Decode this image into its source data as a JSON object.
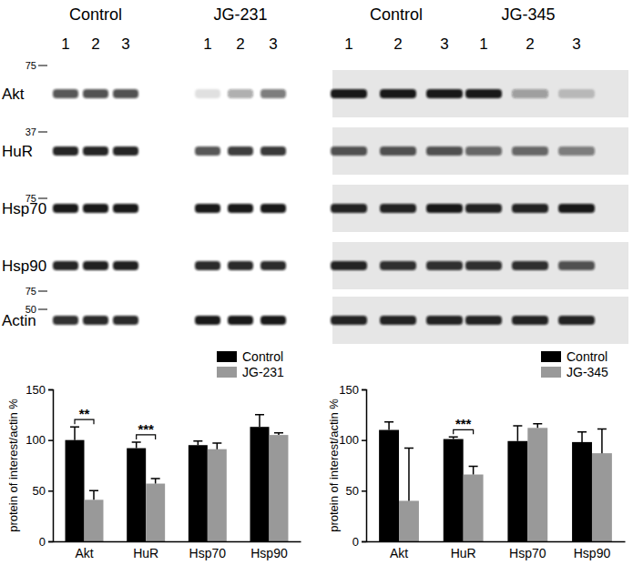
{
  "blots": {
    "panels": [
      {
        "groups": [
          "Control",
          "JG-231"
        ],
        "lanes": [
          1,
          2,
          3,
          1,
          2,
          3
        ],
        "rows": [
          {
            "label": "Akt",
            "marker": 75,
            "band_intensity": [
              0.7,
              0.72,
              0.72,
              0.12,
              0.35,
              0.55
            ]
          },
          {
            "label": "HuR",
            "marker": 37,
            "band_intensity": [
              0.9,
              0.9,
              0.9,
              0.7,
              0.8,
              0.82
            ]
          },
          {
            "label": "Hsp70",
            "marker": 75,
            "band_intensity": [
              0.95,
              0.95,
              0.95,
              0.95,
              0.95,
              0.95
            ]
          },
          {
            "label": "Hsp90",
            "marker": 75,
            "band_intensity": [
              0.9,
              0.92,
              0.92,
              0.88,
              0.88,
              0.88
            ]
          },
          {
            "label": "Actin",
            "marker": 50,
            "band_intensity": [
              0.85,
              0.88,
              0.88,
              0.95,
              0.95,
              0.95
            ]
          }
        ]
      },
      {
        "groups": [
          "Control",
          "JG-345"
        ],
        "lanes": [
          1,
          2,
          3,
          1,
          2,
          3
        ],
        "rows": [
          {
            "band_intensity": [
              0.95,
              0.95,
              0.95,
              0.95,
              0.35,
              0.2
            ]
          },
          {
            "band_intensity": [
              0.7,
              0.7,
              0.7,
              0.6,
              0.6,
              0.5
            ]
          },
          {
            "band_intensity": [
              0.9,
              0.9,
              0.95,
              0.9,
              0.9,
              0.95
            ]
          },
          {
            "band_intensity": [
              0.9,
              0.85,
              0.85,
              0.85,
              0.85,
              0.7
            ]
          },
          {
            "band_intensity": [
              0.9,
              0.9,
              0.9,
              0.9,
              0.9,
              0.9
            ]
          }
        ]
      }
    ]
  },
  "chart_data": [
    {
      "type": "bar",
      "ylabel": "protein of interest/actin %",
      "categories": [
        "Akt",
        "HuR",
        "Hsp70",
        "Hsp90"
      ],
      "series": [
        {
          "name": "Control",
          "color": "#000000",
          "values": [
            100,
            92,
            95,
            113
          ],
          "errors": [
            13,
            6,
            4,
            12
          ]
        },
        {
          "name": "JG-231",
          "color": "#999999",
          "values": [
            41,
            57,
            91,
            105
          ],
          "errors": [
            9,
            5,
            6,
            2
          ]
        }
      ],
      "ylim": [
        0,
        150
      ],
      "yticks": [
        0,
        50,
        100,
        150
      ],
      "legend": "top-right",
      "annotations": [
        {
          "text": "**",
          "category": "Akt"
        },
        {
          "text": "***",
          "category": "HuR"
        }
      ]
    },
    {
      "type": "bar",
      "ylabel": "protein of interest/actin %",
      "categories": [
        "Akt",
        "HuR",
        "Hsp70",
        "Hsp90"
      ],
      "series": [
        {
          "name": "Control",
          "color": "#000000",
          "values": [
            110,
            101,
            99,
            98
          ],
          "errors": [
            8,
            2,
            15,
            10
          ]
        },
        {
          "name": "JG-345",
          "color": "#999999",
          "values": [
            40,
            66,
            112,
            87
          ],
          "errors": [
            52,
            8,
            4,
            24
          ]
        }
      ],
      "ylim": [
        0,
        150
      ],
      "yticks": [
        0,
        50,
        100,
        150
      ],
      "legend": "top-right",
      "annotations": [
        {
          "text": "***",
          "category": "HuR"
        }
      ]
    }
  ]
}
